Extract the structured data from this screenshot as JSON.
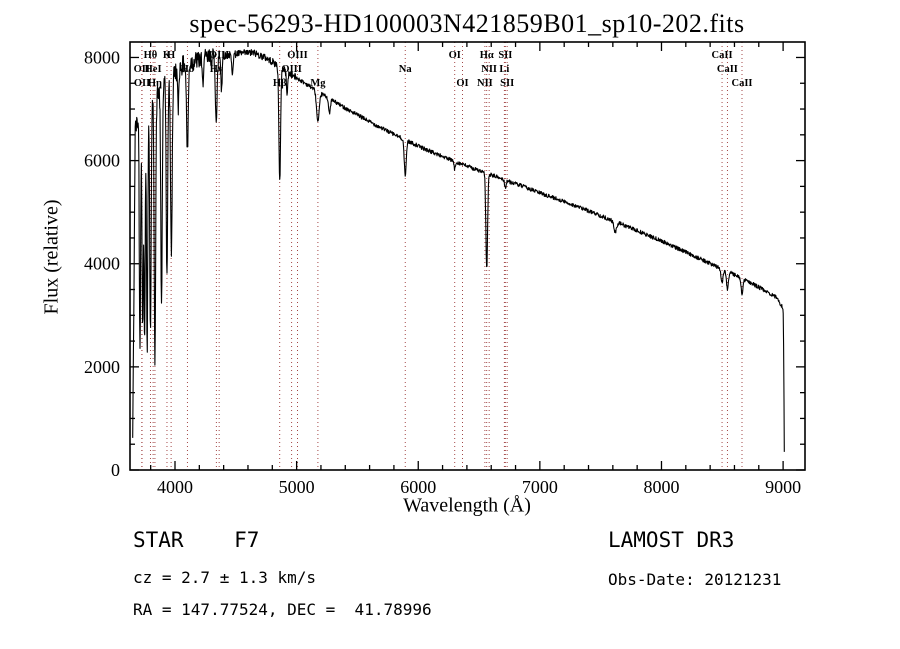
{
  "title": "spec-56293-HD100003N421859B01_sp10-202.fits",
  "footer": {
    "class_label": "STAR    F7",
    "survey": "LAMOST DR3",
    "cz": "cz = 2.7 ± 1.3 km/s",
    "obs_date": "Obs-Date: 20121231",
    "coords": "RA = 147.77524, DEC =  41.78996"
  },
  "chart_data": {
    "type": "line",
    "title": "spec-56293-HD100003N421859B01_sp10-202.fits",
    "xlabel": "Wavelength (Å)",
    "ylabel": "Flux (relative)",
    "xlim": [
      3630,
      9180
    ],
    "ylim": [
      0,
      8300
    ],
    "x_ticks": [
      4000,
      5000,
      6000,
      7000,
      8000,
      9000
    ],
    "y_ticks": [
      0,
      2000,
      4000,
      6000,
      8000
    ],
    "x_minor_step": 200,
    "y_minor_step": 500,
    "grid": false,
    "legend": "none",
    "line_color": "#000000",
    "marker_line_color": "#993333",
    "continuum": [
      [
        3650,
        60
      ],
      [
        3662,
        3200
      ],
      [
        3672,
        6600
      ],
      [
        3700,
        6800
      ],
      [
        3740,
        6900
      ],
      [
        3780,
        7010
      ],
      [
        3830,
        7200
      ],
      [
        3880,
        7380
      ],
      [
        3930,
        7530
      ],
      [
        3980,
        7680
      ],
      [
        4050,
        7830
      ],
      [
        4150,
        7930
      ],
      [
        4250,
        7970
      ],
      [
        4350,
        8010
      ],
      [
        4450,
        8050
      ],
      [
        4550,
        8080
      ],
      [
        4650,
        8090
      ],
      [
        4750,
        7990
      ],
      [
        4850,
        7840
      ],
      [
        4950,
        7680
      ],
      [
        5050,
        7530
      ],
      [
        5150,
        7380
      ],
      [
        5250,
        7230
      ],
      [
        5350,
        7090
      ],
      [
        5450,
        6950
      ],
      [
        5550,
        6820
      ],
      [
        5650,
        6690
      ],
      [
        5750,
        6570
      ],
      [
        5850,
        6450
      ],
      [
        5950,
        6340
      ],
      [
        6050,
        6230
      ],
      [
        6150,
        6130
      ],
      [
        6250,
        6030
      ],
      [
        6350,
        5940
      ],
      [
        6450,
        5850
      ],
      [
        6550,
        5760
      ],
      [
        6650,
        5680
      ],
      [
        6750,
        5590
      ],
      [
        6850,
        5510
      ],
      [
        6950,
        5420
      ],
      [
        7050,
        5330
      ],
      [
        7150,
        5250
      ],
      [
        7250,
        5160
      ],
      [
        7350,
        5070
      ],
      [
        7450,
        4980
      ],
      [
        7550,
        4880
      ],
      [
        7650,
        4790
      ],
      [
        7750,
        4690
      ],
      [
        7850,
        4590
      ],
      [
        7950,
        4490
      ],
      [
        8050,
        4390
      ],
      [
        8150,
        4280
      ],
      [
        8250,
        4170
      ],
      [
        8350,
        4060
      ],
      [
        8450,
        3950
      ],
      [
        8550,
        3840
      ],
      [
        8650,
        3730
      ],
      [
        8750,
        3610
      ],
      [
        8850,
        3480
      ],
      [
        8950,
        3340
      ],
      [
        8995,
        3150
      ],
      [
        9002,
        3060
      ],
      [
        9007,
        1400
      ],
      [
        9011,
        40
      ]
    ],
    "absorption_features": [
      {
        "wavelength": 3712,
        "depth": 4600,
        "width": 5
      },
      {
        "wavelength": 3734,
        "depth": 4200,
        "width": 5
      },
      {
        "wavelength": 3750,
        "depth": 4500,
        "width": 5
      },
      {
        "wavelength": 3771,
        "depth": 4700,
        "width": 5
      },
      {
        "wavelength": 3798,
        "depth": 4300,
        "width": 6
      },
      {
        "wavelength": 3835,
        "depth": 5000,
        "width": 6
      },
      {
        "wavelength": 3889,
        "depth": 4200,
        "width": 6
      },
      {
        "wavelength": 3934,
        "depth": 3800,
        "width": 6
      },
      {
        "wavelength": 3970,
        "depth": 3400,
        "width": 7
      },
      {
        "wavelength": 4026,
        "depth": 800,
        "width": 5
      },
      {
        "wavelength": 4102,
        "depth": 1700,
        "width": 7
      },
      {
        "wavelength": 4227,
        "depth": 500,
        "width": 5
      },
      {
        "wavelength": 4340,
        "depth": 1250,
        "width": 7
      },
      {
        "wavelength": 4383,
        "depth": 600,
        "width": 5
      },
      {
        "wavelength": 4471,
        "depth": 350,
        "width": 6
      },
      {
        "wavelength": 4861,
        "depth": 2250,
        "width": 7
      },
      {
        "wavelength": 4922,
        "depth": 400,
        "width": 6
      },
      {
        "wavelength": 5175,
        "depth": 600,
        "width": 11
      },
      {
        "wavelength": 5270,
        "depth": 300,
        "width": 7
      },
      {
        "wavelength": 5893,
        "depth": 700,
        "width": 8
      },
      {
        "wavelength": 6300,
        "depth": 150,
        "width": 6
      },
      {
        "wavelength": 6563,
        "depth": 1850,
        "width": 7
      },
      {
        "wavelength": 6716,
        "depth": 150,
        "width": 6
      },
      {
        "wavelength": 7620,
        "depth": 200,
        "width": 12
      },
      {
        "wavelength": 8498,
        "depth": 250,
        "width": 8
      },
      {
        "wavelength": 8542,
        "depth": 330,
        "width": 8
      },
      {
        "wavelength": 8662,
        "depth": 300,
        "width": 8
      }
    ],
    "noise_bands": [
      {
        "max_wavelength": 4400,
        "amplitude": 190
      },
      {
        "max_wavelength": 5000,
        "amplitude": 70
      },
      {
        "max_wavelength": 9999,
        "amplitude": 38
      }
    ],
    "spectral_lines": [
      {
        "wavelength": 3798,
        "label": "Hθ",
        "row": 1
      },
      {
        "wavelength": 3934,
        "label": "K",
        "row": 1
      },
      {
        "wavelength": 3968,
        "label": "H",
        "row": 1
      },
      {
        "wavelength": 4363,
        "label": "OIII",
        "row": 1
      },
      {
        "wavelength": 5007,
        "label": "OIII",
        "row": 1
      },
      {
        "wavelength": 6300,
        "label": "OI",
        "row": 1
      },
      {
        "wavelength": 6563,
        "label": "Hα",
        "row": 1
      },
      {
        "wavelength": 6716,
        "label": "SII",
        "row": 1
      },
      {
        "wavelength": 8498,
        "label": "CaII",
        "row": 1
      },
      {
        "wavelength": 3727,
        "label": "OII",
        "row": 2
      },
      {
        "wavelength": 3820,
        "label": "HeI",
        "row": 2
      },
      {
        "wavelength": 4102,
        "label": "Hδ",
        "row": 2
      },
      {
        "wavelength": 4340,
        "label": "Hγ",
        "row": 2
      },
      {
        "wavelength": 4959,
        "label": "OIII",
        "row": 2
      },
      {
        "wavelength": 5893,
        "label": "Na",
        "row": 2
      },
      {
        "wavelength": 6583,
        "label": "NII",
        "row": 2
      },
      {
        "wavelength": 6708,
        "label": "Li",
        "row": 2
      },
      {
        "wavelength": 8542,
        "label": "CaII",
        "row": 2
      },
      {
        "wavelength": 3729,
        "label": "OII",
        "row": 3
      },
      {
        "wavelength": 3835,
        "label": "Hη",
        "row": 3
      },
      {
        "wavelength": 4861,
        "label": "Hβ",
        "row": 3
      },
      {
        "wavelength": 5175,
        "label": "Mg",
        "row": 3
      },
      {
        "wavelength": 6364,
        "label": "OI",
        "row": 3
      },
      {
        "wavelength": 6548,
        "label": "NII",
        "row": 3
      },
      {
        "wavelength": 6731,
        "label": "SII",
        "row": 3
      },
      {
        "wavelength": 8662,
        "label": "CaII",
        "row": 3
      }
    ]
  }
}
